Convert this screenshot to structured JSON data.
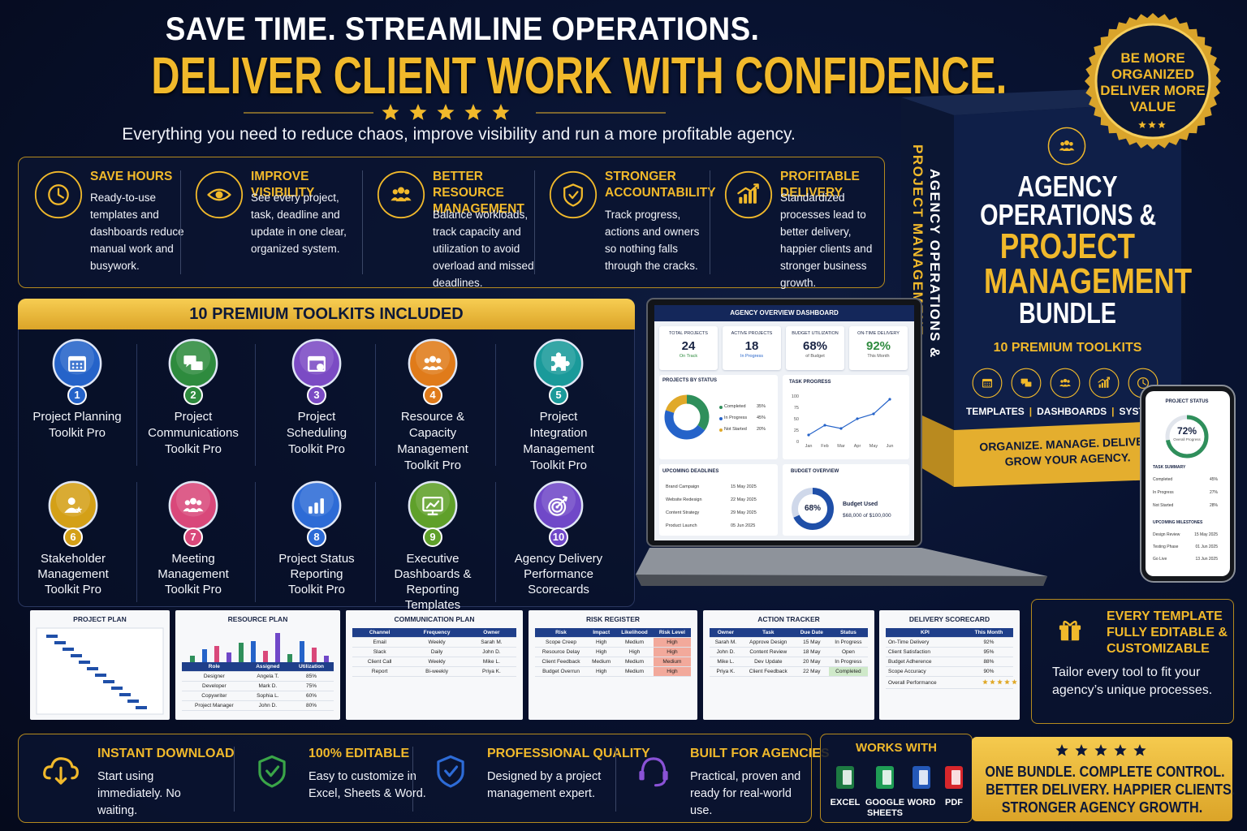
{
  "header": {
    "line1": "SAVE TIME. STREAMLINE OPERATIONS.",
    "line2": "DELIVER CLIENT WORK WITH CONFIDENCE.",
    "subtitle": "Everything you need to reduce chaos, improve visibility and run a more profitable agency."
  },
  "badge": {
    "lines": [
      "BE MORE",
      "ORGANIZED",
      "DELIVER MORE",
      "VALUE"
    ]
  },
  "benefits": [
    {
      "title": "SAVE HOURS",
      "text": "Ready-to-use templates and dashboards reduce manual work and busywork."
    },
    {
      "title": "IMPROVE VISIBILITY",
      "text": "See every project, task, deadline and update in one clear, organized system."
    },
    {
      "title": "BETTER RESOURCE MANAGEMENT",
      "text": "Balance workloads, track capacity and utilization to avoid overload and missed deadlines."
    },
    {
      "title": "STRONGER ACCOUNTABILITY",
      "text": "Track progress, actions and owners so nothing falls through the cracks."
    },
    {
      "title": "PROFITABLE DELIVERY",
      "text": "Standardized processes lead to better delivery, happier clients and stronger business growth."
    }
  ],
  "toolkits": {
    "heading": "10 PREMIUM TOOLKITS INCLUDED",
    "items": [
      {
        "number": 1,
        "lines": [
          "Project Planning",
          "Toolkit Pro"
        ]
      },
      {
        "number": 2,
        "lines": [
          "Project",
          "Communications",
          "Toolkit Pro"
        ]
      },
      {
        "number": 3,
        "lines": [
          "Project",
          "Scheduling",
          "Toolkit Pro"
        ]
      },
      {
        "number": 4,
        "lines": [
          "Resource &",
          "Capacity",
          "Management",
          "Toolkit Pro"
        ]
      },
      {
        "number": 5,
        "lines": [
          "Project",
          "Integration",
          "Management",
          "Toolkit Pro"
        ]
      },
      {
        "number": 6,
        "lines": [
          "Stakeholder",
          "Management",
          "Toolkit Pro"
        ]
      },
      {
        "number": 7,
        "lines": [
          "Meeting",
          "Management",
          "Toolkit Pro"
        ]
      },
      {
        "number": 8,
        "lines": [
          "Project Status",
          "Reporting",
          "Toolkit Pro"
        ]
      },
      {
        "number": 9,
        "lines": [
          "Executive",
          "Dashboards &",
          "Reporting",
          "Templates"
        ]
      },
      {
        "number": 10,
        "lines": [
          "Agency Delivery",
          "Performance",
          "Scorecards"
        ]
      }
    ]
  },
  "product_box": {
    "spine_lines": [
      "AGENCY OPERATIONS &",
      "PROJECT MANAGEMENT"
    ],
    "title_lines": [
      "AGENCY",
      "OPERATIONS &",
      "PROJECT",
      "MANAGEMENT",
      "BUNDLE"
    ],
    "subtitle": "10 PREMIUM TOOLKITS",
    "links": [
      "TEMPLATES",
      "DASHBOARDS",
      "SYSTEM"
    ],
    "tagline": [
      "ORGANIZE. MANAGE. DELIVER.",
      "GROW YOUR AGENCY."
    ]
  },
  "dashboard": {
    "title": "AGENCY OVERVIEW DASHBOARD",
    "kpis": [
      {
        "label": "TOTAL PROJECTS",
        "value": "24",
        "sub": "On Track"
      },
      {
        "label": "ACTIVE PROJECTS",
        "value": "18",
        "sub": "In Progress"
      },
      {
        "label": "BUDGET UTILIZATION",
        "value": "68%",
        "sub": "of Budget"
      },
      {
        "label": "ON-TIME DELIVERY",
        "value": "92%",
        "sub": "This Month"
      }
    ],
    "status": {
      "title": "PROJECTS BY STATUS",
      "legend": [
        [
          "Completed",
          "35%"
        ],
        [
          "In Progress",
          "45%"
        ],
        [
          "Not Started",
          "20%"
        ]
      ]
    },
    "progress": {
      "title": "TASK PROGRESS",
      "yticks": [
        100,
        75,
        50,
        25,
        0
      ],
      "months": [
        "Jan",
        "Feb",
        "Mar",
        "Apr",
        "May",
        "Jun"
      ]
    },
    "deadlines": {
      "title": "UPCOMING DEADLINES",
      "rows": [
        [
          "Brand Campaign",
          "15 May 2025"
        ],
        [
          "Website Redesign",
          "22 May 2025"
        ],
        [
          "Content Strategy",
          "29 May 2025"
        ],
        [
          "Product Launch",
          "05 Jun 2025"
        ]
      ]
    },
    "budget": {
      "title": "BUDGET OVERVIEW",
      "pct": "68%",
      "label": "Budget Used",
      "amount": "$68,000 of $100,000"
    }
  },
  "phone": {
    "title": "PROJECT STATUS",
    "pct": "72%",
    "sub": "Overall Progress",
    "summary_title": "TASK SUMMARY",
    "summary": [
      [
        "Completed",
        "45%"
      ],
      [
        "In Progress",
        "27%"
      ],
      [
        "Not Started",
        "28%"
      ]
    ],
    "milestones_title": "UPCOMING MILESTONES",
    "milestones": [
      [
        "Design Review",
        "15 May 2025"
      ],
      [
        "Testing Phase",
        "01 Jun 2025"
      ],
      [
        "Go Live",
        "13 Jun 2025"
      ]
    ]
  },
  "templates": [
    {
      "title": "PROJECT PLAN"
    },
    {
      "title": "RESOURCE PLAN",
      "header": [
        "Role",
        "Assigned",
        "Utilization"
      ],
      "rows": [
        [
          "Designer",
          "Angela T.",
          "85%"
        ],
        [
          "Developer",
          "Mark D.",
          "75%"
        ],
        [
          "Copywriter",
          "Sophia L.",
          "60%"
        ],
        [
          "Project Manager",
          "John D.",
          "80%"
        ]
      ]
    },
    {
      "title": "COMMUNICATION PLAN",
      "header": [
        "Channel",
        "Frequency",
        "Owner"
      ],
      "rows": [
        [
          "Email",
          "Weekly",
          "Sarah M."
        ],
        [
          "Slack",
          "Daily",
          "John D."
        ],
        [
          "Client Call",
          "Weekly",
          "Mike L."
        ],
        [
          "Report",
          "Bi-weekly",
          "Priya K."
        ]
      ]
    },
    {
      "title": "RISK REGISTER",
      "header": [
        "Risk",
        "Impact",
        "Likelihood",
        "Risk Level"
      ],
      "rows": [
        [
          "Scope Creep",
          "High",
          "Medium",
          "High"
        ],
        [
          "Resource Delay",
          "High",
          "High",
          "High"
        ],
        [
          "Client Feedback",
          "Medium",
          "Medium",
          "Medium"
        ],
        [
          "Budget Overrun",
          "High",
          "Medium",
          "High"
        ]
      ]
    },
    {
      "title": "ACTION TRACKER",
      "header": [
        "Owner",
        "Task",
        "Due Date",
        "Status"
      ],
      "rows": [
        [
          "Sarah M.",
          "Approve Design",
          "15 May",
          "In Progress"
        ],
        [
          "John D.",
          "Content Review",
          "18 May",
          "Open"
        ],
        [
          "Mike L.",
          "Dev Update",
          "20 May",
          "In Progress"
        ],
        [
          "Priya K.",
          "Client Feedback",
          "22 May",
          "Completed"
        ]
      ]
    },
    {
      "title": "DELIVERY SCORECARD",
      "header": [
        "KPI",
        "This Month"
      ],
      "rows": [
        [
          "On-Time Delivery",
          "92%"
        ],
        [
          "Client Satisfaction",
          "95%"
        ],
        [
          "Budget Adherence",
          "88%"
        ],
        [
          "Scope Accuracy",
          "90%"
        ],
        [
          "Overall Performance"
        ]
      ]
    }
  ],
  "editable": {
    "title_lines": [
      "EVERY TEMPLATE",
      "FULLY EDITABLE &",
      "CUSTOMIZABLE"
    ],
    "text": "Tailor every tool to fit your agency’s unique processes."
  },
  "features": [
    {
      "title": "INSTANT DOWNLOAD",
      "text": "Start using immediately. No waiting."
    },
    {
      "title": "100% EDITABLE",
      "text": "Easy to customize in Excel, Sheets & Word."
    },
    {
      "title": "PROFESSIONAL QUALITY",
      "text": "Designed by a project management expert."
    },
    {
      "title": "BUILT FOR AGENCIES",
      "text": "Practical, proven and ready for real-world use."
    }
  ],
  "works_with": {
    "title": "WORKS WITH",
    "apps": [
      "EXCEL",
      "GOOGLE SHEETS",
      "WORD",
      "PDF"
    ]
  },
  "closing": {
    "lines": [
      "ONE BUNDLE. COMPLETE CONTROL.",
      "BETTER DELIVERY. HAPPIER CLIENTS.",
      "STRONGER AGENCY GROWTH."
    ]
  }
}
